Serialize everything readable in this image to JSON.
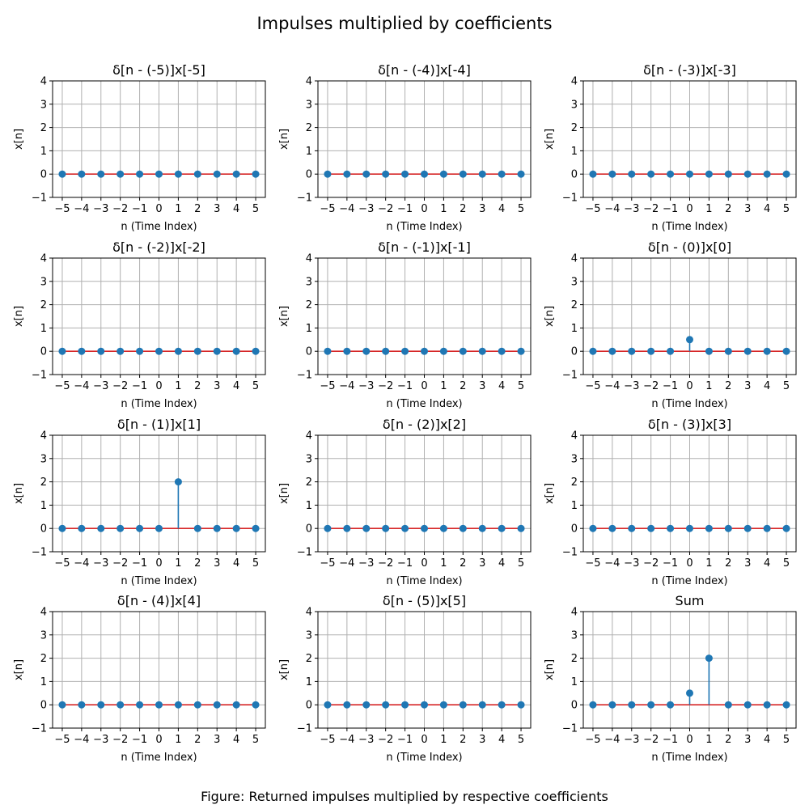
{
  "figure": {
    "title": "Impulses multiplied by coefficients",
    "caption": "Figure: Returned impulses multiplied by respective coefficients"
  },
  "colors": {
    "stem": "#1f77b4",
    "baseline": "#d62728",
    "grid": "#b0b0b0",
    "axes": "#000000"
  },
  "chart_data": [
    {
      "type": "stem",
      "title": "δ[n - (-5)]x[-5]",
      "xlabel": "n (Time Index)",
      "ylabel": "x[n]",
      "xlim": [
        -5.5,
        5.5
      ],
      "ylim": [
        -1,
        4
      ],
      "grid": true,
      "x": [
        -5,
        -4,
        -3,
        -2,
        -1,
        0,
        1,
        2,
        3,
        4,
        5
      ],
      "y": [
        0,
        0,
        0,
        0,
        0,
        0,
        0,
        0,
        0,
        0,
        0
      ],
      "xticks": [
        "−5",
        "−4",
        "−3",
        "−2",
        "−1",
        "0",
        "1",
        "2",
        "3",
        "4",
        "5"
      ],
      "yticks": [
        "−1",
        "0",
        "1",
        "2",
        "3",
        "4"
      ]
    },
    {
      "type": "stem",
      "title": "δ[n - (-4)]x[-4]",
      "xlabel": "n (Time Index)",
      "ylabel": "x[n]",
      "xlim": [
        -5.5,
        5.5
      ],
      "ylim": [
        -1,
        4
      ],
      "grid": true,
      "x": [
        -5,
        -4,
        -3,
        -2,
        -1,
        0,
        1,
        2,
        3,
        4,
        5
      ],
      "y": [
        0,
        0,
        0,
        0,
        0,
        0,
        0,
        0,
        0,
        0,
        0
      ],
      "xticks": [
        "−5",
        "−4",
        "−3",
        "−2",
        "−1",
        "0",
        "1",
        "2",
        "3",
        "4",
        "5"
      ],
      "yticks": [
        "−1",
        "0",
        "1",
        "2",
        "3",
        "4"
      ]
    },
    {
      "type": "stem",
      "title": "δ[n - (-3)]x[-3]",
      "xlabel": "n (Time Index)",
      "ylabel": "x[n]",
      "xlim": [
        -5.5,
        5.5
      ],
      "ylim": [
        -1,
        4
      ],
      "grid": true,
      "x": [
        -5,
        -4,
        -3,
        -2,
        -1,
        0,
        1,
        2,
        3,
        4,
        5
      ],
      "y": [
        0,
        0,
        0,
        0,
        0,
        0,
        0,
        0,
        0,
        0,
        0
      ],
      "xticks": [
        "−5",
        "−4",
        "−3",
        "−2",
        "−1",
        "0",
        "1",
        "2",
        "3",
        "4",
        "5"
      ],
      "yticks": [
        "−1",
        "0",
        "1",
        "2",
        "3",
        "4"
      ]
    },
    {
      "type": "stem",
      "title": "δ[n - (-2)]x[-2]",
      "xlabel": "n (Time Index)",
      "ylabel": "x[n]",
      "xlim": [
        -5.5,
        5.5
      ],
      "ylim": [
        -1,
        4
      ],
      "grid": true,
      "x": [
        -5,
        -4,
        -3,
        -2,
        -1,
        0,
        1,
        2,
        3,
        4,
        5
      ],
      "y": [
        0,
        0,
        0,
        0,
        0,
        0,
        0,
        0,
        0,
        0,
        0
      ],
      "xticks": [
        "−5",
        "−4",
        "−3",
        "−2",
        "−1",
        "0",
        "1",
        "2",
        "3",
        "4",
        "5"
      ],
      "yticks": [
        "−1",
        "0",
        "1",
        "2",
        "3",
        "4"
      ]
    },
    {
      "type": "stem",
      "title": "δ[n - (-1)]x[-1]",
      "xlabel": "n (Time Index)",
      "ylabel": "x[n]",
      "xlim": [
        -5.5,
        5.5
      ],
      "ylim": [
        -1,
        4
      ],
      "grid": true,
      "x": [
        -5,
        -4,
        -3,
        -2,
        -1,
        0,
        1,
        2,
        3,
        4,
        5
      ],
      "y": [
        0,
        0,
        0,
        0,
        0,
        0,
        0,
        0,
        0,
        0,
        0
      ],
      "xticks": [
        "−5",
        "−4",
        "−3",
        "−2",
        "−1",
        "0",
        "1",
        "2",
        "3",
        "4",
        "5"
      ],
      "yticks": [
        "−1",
        "0",
        "1",
        "2",
        "3",
        "4"
      ]
    },
    {
      "type": "stem",
      "title": "δ[n - (0)]x[0]",
      "xlabel": "n (Time Index)",
      "ylabel": "x[n]",
      "xlim": [
        -5.5,
        5.5
      ],
      "ylim": [
        -1,
        4
      ],
      "grid": true,
      "x": [
        -5,
        -4,
        -3,
        -2,
        -1,
        0,
        1,
        2,
        3,
        4,
        5
      ],
      "y": [
        0,
        0,
        0,
        0,
        0,
        0.5,
        0,
        0,
        0,
        0,
        0
      ],
      "xticks": [
        "−5",
        "−4",
        "−3",
        "−2",
        "−1",
        "0",
        "1",
        "2",
        "3",
        "4",
        "5"
      ],
      "yticks": [
        "−1",
        "0",
        "1",
        "2",
        "3",
        "4"
      ]
    },
    {
      "type": "stem",
      "title": "δ[n - (1)]x[1]",
      "xlabel": "n (Time Index)",
      "ylabel": "x[n]",
      "xlim": [
        -5.5,
        5.5
      ],
      "ylim": [
        -1,
        4
      ],
      "grid": true,
      "x": [
        -5,
        -4,
        -3,
        -2,
        -1,
        0,
        1,
        2,
        3,
        4,
        5
      ],
      "y": [
        0,
        0,
        0,
        0,
        0,
        0,
        2,
        0,
        0,
        0,
        0
      ],
      "xticks": [
        "−5",
        "−4",
        "−3",
        "−2",
        "−1",
        "0",
        "1",
        "2",
        "3",
        "4",
        "5"
      ],
      "yticks": [
        "−1",
        "0",
        "1",
        "2",
        "3",
        "4"
      ]
    },
    {
      "type": "stem",
      "title": "δ[n - (2)]x[2]",
      "xlabel": "n (Time Index)",
      "ylabel": "x[n]",
      "xlim": [
        -5.5,
        5.5
      ],
      "ylim": [
        -1,
        4
      ],
      "grid": true,
      "x": [
        -5,
        -4,
        -3,
        -2,
        -1,
        0,
        1,
        2,
        3,
        4,
        5
      ],
      "y": [
        0,
        0,
        0,
        0,
        0,
        0,
        0,
        0,
        0,
        0,
        0
      ],
      "xticks": [
        "−5",
        "−4",
        "−3",
        "−2",
        "−1",
        "0",
        "1",
        "2",
        "3",
        "4",
        "5"
      ],
      "yticks": [
        "−1",
        "0",
        "1",
        "2",
        "3",
        "4"
      ]
    },
    {
      "type": "stem",
      "title": "δ[n - (3)]x[3]",
      "xlabel": "n (Time Index)",
      "ylabel": "x[n]",
      "xlim": [
        -5.5,
        5.5
      ],
      "ylim": [
        -1,
        4
      ],
      "grid": true,
      "x": [
        -5,
        -4,
        -3,
        -2,
        -1,
        0,
        1,
        2,
        3,
        4,
        5
      ],
      "y": [
        0,
        0,
        0,
        0,
        0,
        0,
        0,
        0,
        0,
        0,
        0
      ],
      "xticks": [
        "−5",
        "−4",
        "−3",
        "−2",
        "−1",
        "0",
        "1",
        "2",
        "3",
        "4",
        "5"
      ],
      "yticks": [
        "−1",
        "0",
        "1",
        "2",
        "3",
        "4"
      ]
    },
    {
      "type": "stem",
      "title": "δ[n - (4)]x[4]",
      "xlabel": "n (Time Index)",
      "ylabel": "x[n]",
      "xlim": [
        -5.5,
        5.5
      ],
      "ylim": [
        -1,
        4
      ],
      "grid": true,
      "x": [
        -5,
        -4,
        -3,
        -2,
        -1,
        0,
        1,
        2,
        3,
        4,
        5
      ],
      "y": [
        0,
        0,
        0,
        0,
        0,
        0,
        0,
        0,
        0,
        0,
        0
      ],
      "xticks": [
        "−5",
        "−4",
        "−3",
        "−2",
        "−1",
        "0",
        "1",
        "2",
        "3",
        "4",
        "5"
      ],
      "yticks": [
        "−1",
        "0",
        "1",
        "2",
        "3",
        "4"
      ]
    },
    {
      "type": "stem",
      "title": "δ[n - (5)]x[5]",
      "xlabel": "n (Time Index)",
      "ylabel": "x[n]",
      "xlim": [
        -5.5,
        5.5
      ],
      "ylim": [
        -1,
        4
      ],
      "grid": true,
      "x": [
        -5,
        -4,
        -3,
        -2,
        -1,
        0,
        1,
        2,
        3,
        4,
        5
      ],
      "y": [
        0,
        0,
        0,
        0,
        0,
        0,
        0,
        0,
        0,
        0,
        0
      ],
      "xticks": [
        "−5",
        "−4",
        "−3",
        "−2",
        "−1",
        "0",
        "1",
        "2",
        "3",
        "4",
        "5"
      ],
      "yticks": [
        "−1",
        "0",
        "1",
        "2",
        "3",
        "4"
      ]
    },
    {
      "type": "stem",
      "title": "Sum",
      "xlabel": "n (Time Index)",
      "ylabel": "x[n]",
      "xlim": [
        -5.5,
        5.5
      ],
      "ylim": [
        -1,
        4
      ],
      "grid": true,
      "x": [
        -5,
        -4,
        -3,
        -2,
        -1,
        0,
        1,
        2,
        3,
        4,
        5
      ],
      "y": [
        0,
        0,
        0,
        0,
        0,
        0.5,
        2,
        0,
        0,
        0,
        0
      ],
      "xticks": [
        "−5",
        "−4",
        "−3",
        "−2",
        "−1",
        "0",
        "1",
        "2",
        "3",
        "4",
        "5"
      ],
      "yticks": [
        "−1",
        "0",
        "1",
        "2",
        "3",
        "4"
      ]
    }
  ]
}
